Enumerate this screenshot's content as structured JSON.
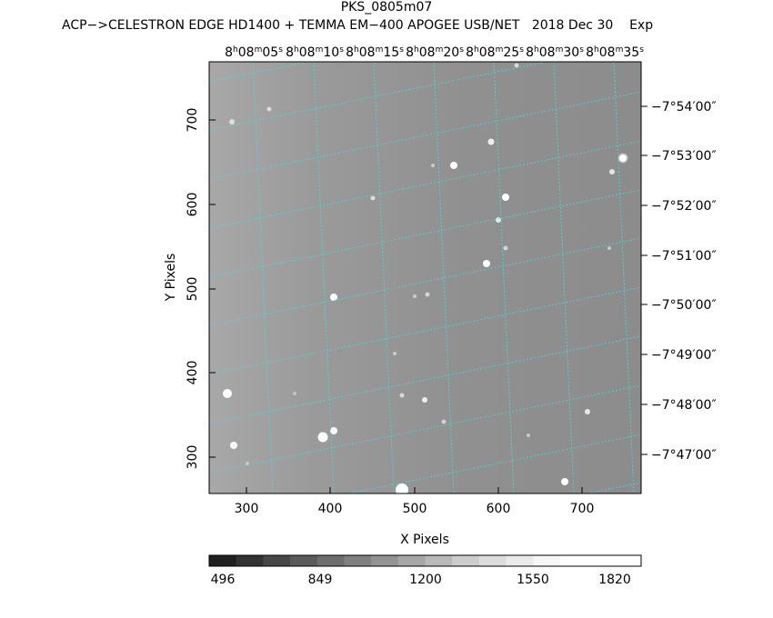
{
  "title": "PKS_0805m07",
  "subtitle": "ACP−>CELESTRON EDGE HD1400 + TEMMA EM−400 APOGEE USB/NET   2018 Dec 30    Exp",
  "x_label": "X Pixels",
  "y_label": "Y Pixels",
  "x_ticks": [
    {
      "label": "300",
      "value": 300
    },
    {
      "label": "400",
      "value": 400
    },
    {
      "label": "500",
      "value": 500
    },
    {
      "label": "600",
      "value": 600
    },
    {
      "label": "700",
      "value": 700
    }
  ],
  "y_ticks": [
    {
      "label": "300",
      "value": 300
    },
    {
      "label": "400",
      "value": 400
    },
    {
      "label": "500",
      "value": 500
    },
    {
      "label": "600",
      "value": 600
    },
    {
      "label": "700",
      "value": 700
    }
  ],
  "ra_labels": [
    "05",
    "10",
    "15",
    "20",
    "25",
    "30",
    "35"
  ],
  "ra_prefix": {
    "h": "8",
    "m": "08"
  },
  "dec_labels": [
    "−7°54′00″",
    "−7°53′00″",
    "−7°52′00″",
    "−7°51′00″",
    "−7°50′00″",
    "−7°49′00″",
    "−7°48′00″",
    "−7°47′00″"
  ],
  "colorbar_labels": [
    "496",
    "849",
    "1200",
    "1550",
    "1820"
  ],
  "colorbar_colors": [
    "#202020",
    "#333333",
    "#474747",
    "#5a5a5a",
    "#6d6d6d",
    "#808080",
    "#939393",
    "#a6a6a6",
    "#b9b9b9",
    "#cccccc",
    "#dcdcdc",
    "#eaeaea",
    "#f6f6f6",
    "#ffffff",
    "#ffffff",
    "#ffffff"
  ],
  "grid_color": "#3ee0e0"
}
